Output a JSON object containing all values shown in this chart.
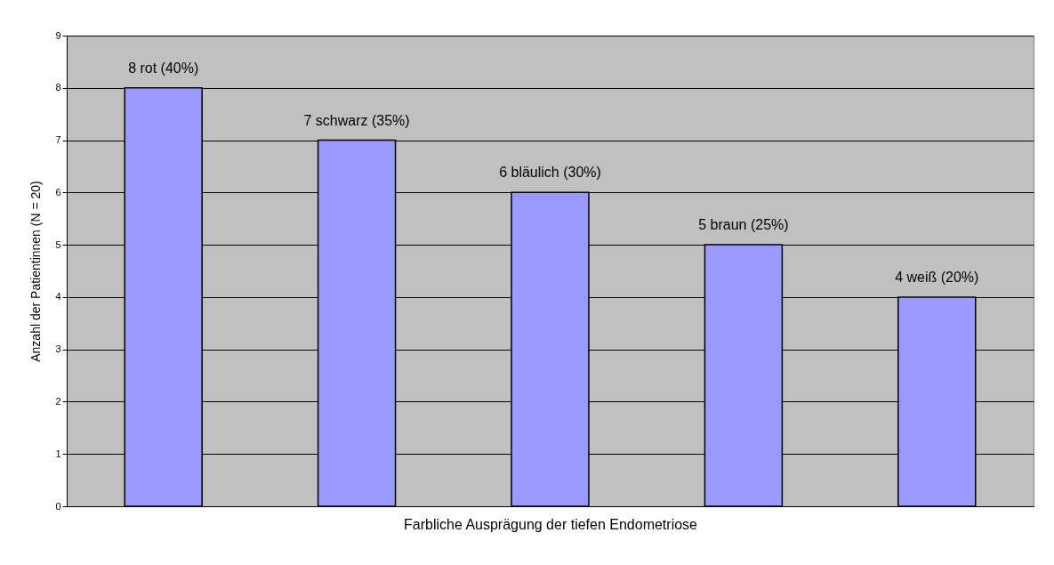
{
  "chart_data": {
    "type": "bar",
    "xlabel": "Farbliche Ausprägung der tiefen Endometriose",
    "ylabel": "Anzahl der Patientinnen (N = 20)",
    "categories": [
      null,
      null,
      null,
      null,
      null
    ],
    "values": [
      8,
      7,
      6,
      5,
      4
    ],
    "value_labels": [
      "8 rot (40%)",
      "7 schwarz (35%)",
      "6 bläulich (30%)",
      "5 braun (25%)",
      "4 weiß (20%)"
    ],
    "color": "#9999ff",
    "ylim": [
      0,
      9
    ],
    "yticks": [
      0,
      1,
      2,
      3,
      4,
      5,
      6,
      7,
      8,
      9
    ],
    "grid": "y",
    "tick_labels": "y"
  }
}
